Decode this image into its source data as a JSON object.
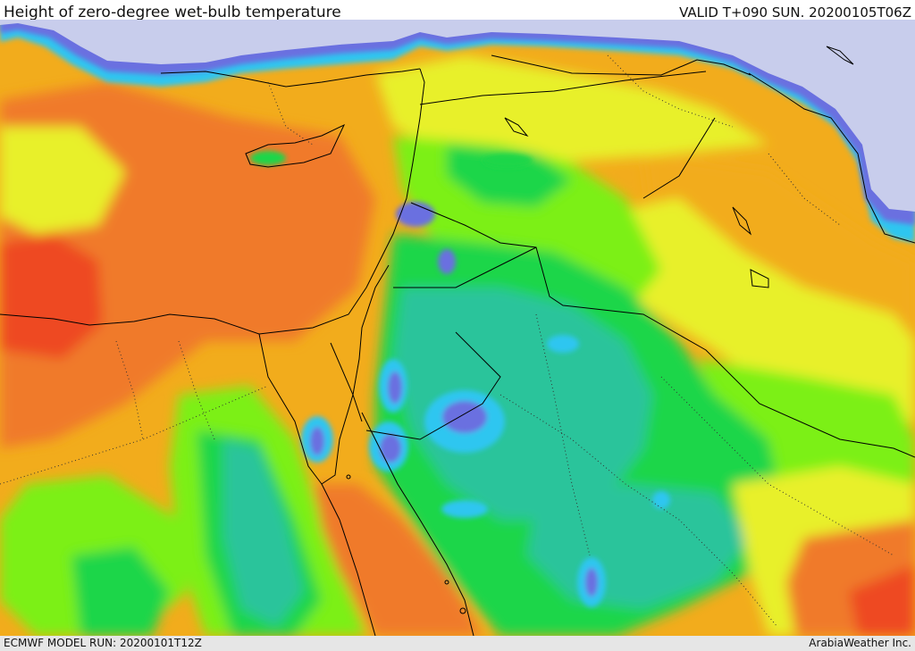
{
  "header": {
    "title": "Height of zero-degree wet-bulb temperature",
    "valid_time": "VALID T+090 SUN. 20200105T06Z"
  },
  "footer": {
    "model_run": "ECMWF MODEL RUN: 20200101T12Z",
    "credit": "ArabiaWeather Inc."
  },
  "map": {
    "parameter": "zero-degree wet-bulb height",
    "palette": {
      "no_data_snow": "#c8cdec",
      "very_low": "#6b6fe0",
      "low": "#2ec6f0",
      "low_mid": "#2bc49b",
      "mid": "#1ed64a",
      "mid_high": "#7cf018",
      "high": "#e8f02a",
      "higher": "#f2ac1c",
      "very_high": "#f07a2a",
      "extreme": "#ee4a22",
      "peak": "#e0208a"
    },
    "boundary_color": "#000000"
  }
}
